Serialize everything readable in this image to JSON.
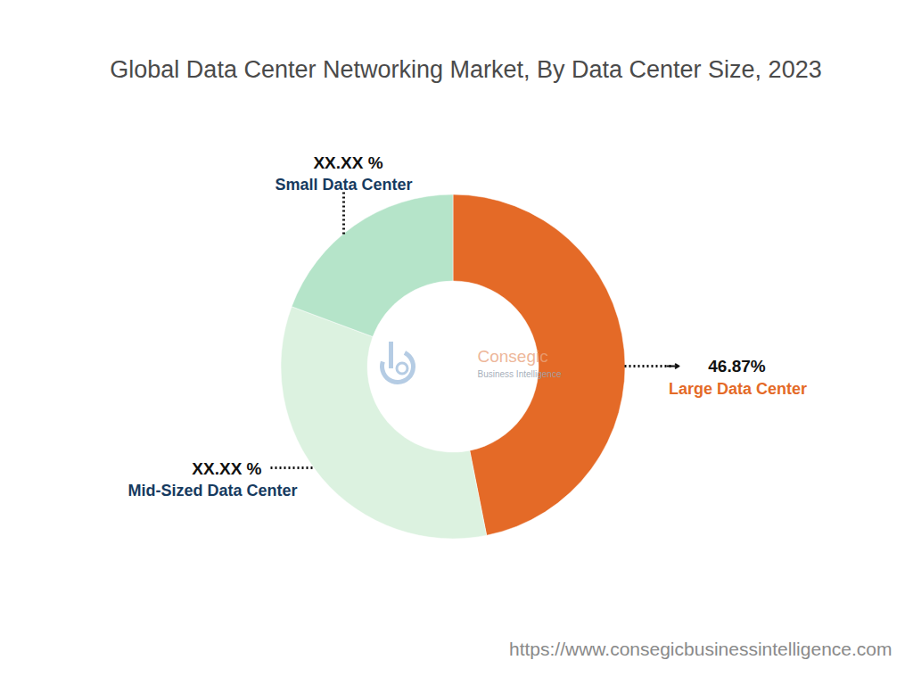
{
  "chart_data": {
    "type": "donut",
    "title": "Global Data Center Networking Market, By Data Center Size, 2023",
    "categories": [
      "Large Data Center",
      "Mid-Sized Data Center",
      "Small Data Center"
    ],
    "values": [
      46.87,
      33.8,
      19.33
    ],
    "value_labels": [
      "46.87%",
      "XX.XX %",
      "XX.XX %"
    ],
    "colors": [
      "#e46a27",
      "#dcf2e0",
      "#b5e4c9"
    ],
    "data_labels": true,
    "watermark": [
      "Consegic",
      "Business Intelligence"
    ],
    "source": "https://www.consegicbusinessintelligence.com"
  }
}
